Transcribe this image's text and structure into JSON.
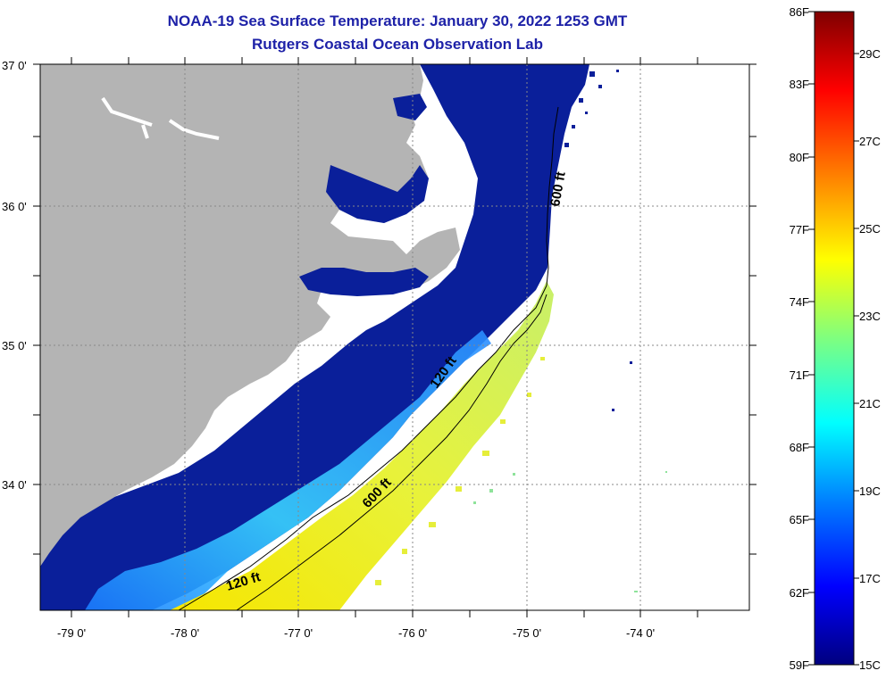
{
  "header": {
    "title": "NOAA-19 Sea Surface Temperature:  January 30, 2022 1253 GMT",
    "subtitle": "Rutgers Coastal Ocean Observation Lab"
  },
  "map": {
    "lon_labels": [
      "-79 0'",
      "-78 0'",
      "-77 0'",
      "-76 0'",
      "-75 0'",
      "-74 0'"
    ],
    "lat_labels": [
      "37 0'",
      "36 0'",
      "35 0'",
      "34 0'"
    ],
    "contour_labels": [
      "600 ft",
      "120 ft",
      "600 ft",
      "120 ft"
    ]
  },
  "colorbar": {
    "f_labels": [
      "86F",
      "83F",
      "80F",
      "77F",
      "74F",
      "71F",
      "68F",
      "65F",
      "62F",
      "59F"
    ],
    "c_labels": [
      "29C",
      "27C",
      "25C",
      "23C",
      "21C",
      "19C",
      "17C",
      "15C"
    ],
    "colors": [
      "#00007f",
      "#0000ff",
      "#007fff",
      "#00ffff",
      "#7fff7f",
      "#ffff00",
      "#ff7f00",
      "#ff0000",
      "#7f0000"
    ]
  },
  "colors": {
    "title": "#1e22a8",
    "land": "#b4b4b4",
    "cold_water": "#0a1f9a"
  }
}
